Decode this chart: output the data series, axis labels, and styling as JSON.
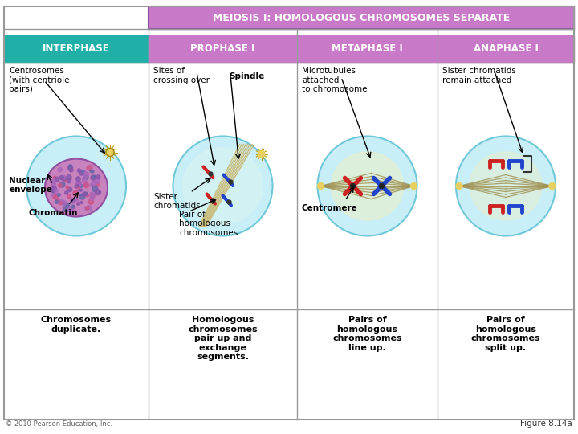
{
  "title": "MEIOSIS I: HOMOLOGOUS CHROMOSOMES SEPARATE",
  "title_bg": "#c87ac8",
  "title_fg": "#ffffff",
  "phases": [
    "INTERPHASE",
    "PROPHASE I",
    "METAPHASE I",
    "ANAPHASE I"
  ],
  "phase_colors": [
    "#20b0a8",
    "#c87ac8",
    "#c87ac8",
    "#c87ac8"
  ],
  "phase_fg": "#ffffff",
  "bottom_labels": [
    "Chromosomes\nduplicate.",
    "Homologous\nchromosomes\npair up and\nexchange\nsegments.",
    "Pairs of\nhomologous\nchromosomes\nline up.",
    "Pairs of\nhomologous\nchromosomes\nsplit up."
  ],
  "bg_color": "#ffffff",
  "border_color": "#999999",
  "footer_left": "© 2010 Pearson Education, Inc.",
  "footer_right": "Figure 8.14a"
}
